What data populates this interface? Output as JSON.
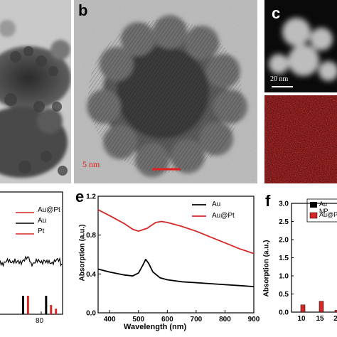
{
  "figure": {
    "panel_labels": [
      "b",
      "c",
      "e",
      "f"
    ],
    "panel_b": {
      "scale_bar": "5 nm"
    },
    "panel_c": {
      "scale_bar": "20 nm"
    }
  },
  "colors": {
    "au": "#000000",
    "au_pt": "#d62728",
    "pt": "#d62728",
    "eds_map": "#c81818"
  },
  "chart_data": [
    {
      "type": "line",
      "panel": "d (partial)",
      "x_tick_labels": [
        "80"
      ],
      "legend": [
        "Au@Pt",
        "Au",
        "Pt"
      ],
      "legend_placement": "top-right",
      "series": [
        {
          "name": "Au@Pt",
          "description_values": "noisy baseline"
        },
        {
          "name": "Au",
          "x": [
            64,
            78
          ],
          "y": [
            1,
            1
          ]
        },
        {
          "name": "Pt",
          "x": [
            67,
            81,
            84
          ],
          "y": [
            1,
            0.5,
            0.3
          ]
        }
      ]
    },
    {
      "type": "line",
      "panel": "e",
      "xlabel": "Wavelength (nm)",
      "ylabel": "Absorption (a.u.)",
      "xlim": [
        360,
        900
      ],
      "ylim": [
        0,
        1.2
      ],
      "x_ticks": [
        400,
        500,
        600,
        700,
        800,
        900
      ],
      "y_ticks": [
        0.0,
        0.4,
        0.8,
        1.2
      ],
      "legend": [
        "Au",
        "Au@Pt"
      ],
      "legend_placement": "top-right",
      "series": [
        {
          "name": "Au",
          "x": [
            360,
            400,
            450,
            480,
            500,
            515,
            525,
            535,
            550,
            575,
            600,
            650,
            700,
            750,
            800,
            850,
            900
          ],
          "y": [
            0.45,
            0.42,
            0.39,
            0.38,
            0.41,
            0.49,
            0.55,
            0.51,
            0.42,
            0.36,
            0.34,
            0.32,
            0.31,
            0.3,
            0.29,
            0.28,
            0.27
          ]
        },
        {
          "name": "Au@Pt",
          "x": [
            360,
            400,
            450,
            480,
            500,
            530,
            560,
            580,
            600,
            650,
            700,
            750,
            800,
            850,
            900
          ],
          "y": [
            1.06,
            1.0,
            0.92,
            0.86,
            0.84,
            0.87,
            0.93,
            0.94,
            0.93,
            0.89,
            0.84,
            0.78,
            0.72,
            0.66,
            0.61
          ]
        }
      ]
    },
    {
      "type": "bar",
      "panel": "f (partial)",
      "ylabel": "Absorption (a.u.)",
      "ylim": [
        0,
        3.0
      ],
      "y_ticks": [
        0.0,
        0.5,
        1.0,
        1.5,
        2.0,
        2.5,
        3.0
      ],
      "categories": [
        "10",
        "15",
        "2"
      ],
      "legend": [
        "Au NP",
        "Au@P"
      ],
      "series": [
        {
          "name": "Au NP",
          "values": [
            0.0,
            0.0,
            0.0
          ]
        },
        {
          "name": "Au@P",
          "values": [
            0.2,
            0.3,
            0.05
          ]
        }
      ]
    }
  ]
}
